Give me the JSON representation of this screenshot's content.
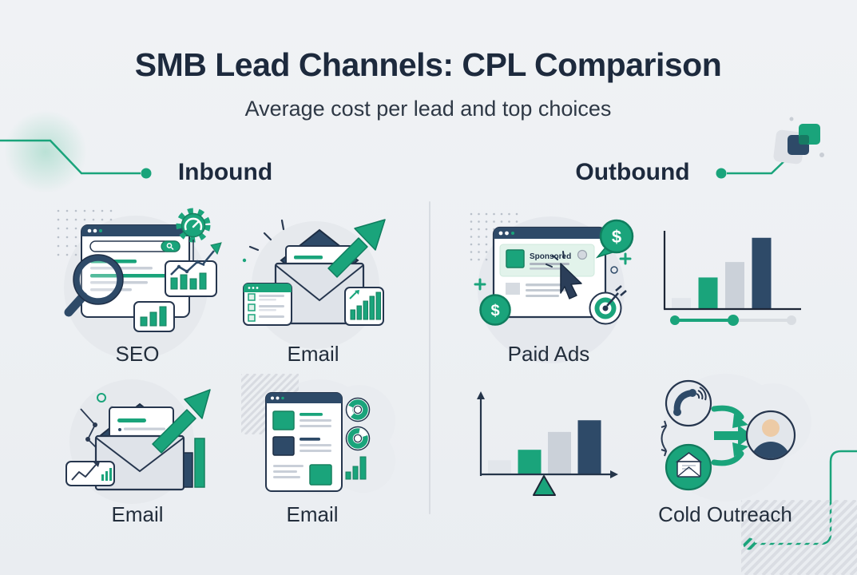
{
  "header": {
    "title": "SMB Lead Channels: CPL Comparison",
    "subtitle": "Average cost per lead and top choices"
  },
  "sections": {
    "inbound": {
      "label": "Inbound"
    },
    "outbound": {
      "label": "Outbound"
    }
  },
  "cells": {
    "seo": {
      "label": "SEO"
    },
    "email_top": {
      "label": "Email"
    },
    "email_bottom_left": {
      "label": "Email"
    },
    "email_bottom_right": {
      "label": "Email"
    },
    "paid_ads": {
      "label": "Paid Ads",
      "sponsored_text": "Sponsored",
      "currency_symbol": "$"
    },
    "cold_outreach": {
      "label": "Cold Outreach"
    }
  },
  "icons": {
    "seo": [
      "browser-window",
      "search-bar",
      "magnifier",
      "gauge-gear",
      "bar-chart-card",
      "mini-bar-chart-card"
    ],
    "email_top": [
      "open-envelope",
      "letter",
      "growth-arrow",
      "checklist-card",
      "bar-chart-card",
      "sparkles"
    ],
    "email_bottom_left": [
      "open-envelope",
      "letter",
      "growth-arrow",
      "bars",
      "trend-card",
      "zigzag"
    ],
    "email_bottom_right": [
      "browser-window",
      "donut-chart",
      "donut-chart",
      "mini-bars",
      "hatch"
    ],
    "paid_ads": [
      "browser-window",
      "sponsored-ad",
      "cursor",
      "dollar-coin",
      "dollar-coin",
      "target",
      "plus-marks"
    ],
    "cold_outreach": [
      "phone-circle",
      "email-circle",
      "person-avatar",
      "flow-arrows",
      "swap-arrow"
    ]
  },
  "chart_data": [
    {
      "type": "bar",
      "context": "outbound top-right decorative CPL bar chart (no tick labels shown)",
      "categories": [
        "bar1",
        "bar2",
        "bar3",
        "bar4"
      ],
      "values": [
        0.15,
        0.43,
        0.64,
        0.97
      ],
      "bar_colors": [
        "#E2E6EB",
        "#1AA47B",
        "#CBD1D9",
        "#2E4A68"
      ],
      "title": "",
      "xlabel": "",
      "ylabel": "",
      "ylim": [
        0,
        1
      ],
      "grid": false,
      "slider": {
        "progress": 0.5,
        "filled_color": "#1AA47B",
        "track_color": "#D9DDE2"
      }
    },
    {
      "type": "bar",
      "context": "outbound bottom-left decorative balance bar chart with fulcrum triangle (no tick labels shown)",
      "categories": [
        "bar1",
        "bar2",
        "bar3",
        "bar4"
      ],
      "values": [
        0.23,
        0.4,
        0.69,
        0.88
      ],
      "bar_colors": [
        "#E2E6EB",
        "#1AA47B",
        "#CBD1D9",
        "#2E4A68"
      ],
      "title": "",
      "xlabel": "",
      "ylabel": "",
      "ylim": [
        0,
        1
      ],
      "grid": false,
      "fulcrum_color": "#1AA47B"
    }
  ],
  "colors": {
    "background": "#EEF1F4",
    "accent_green": "#1AA47B",
    "green_dark": "#0F7D5E",
    "navy": "#2E4A68",
    "ink": "#1D2A3D",
    "divider": "#D8DCE2",
    "bar_gray": "#CBD1D9",
    "bar_light": "#E2E6EB",
    "skin": "#EDCBA6"
  }
}
